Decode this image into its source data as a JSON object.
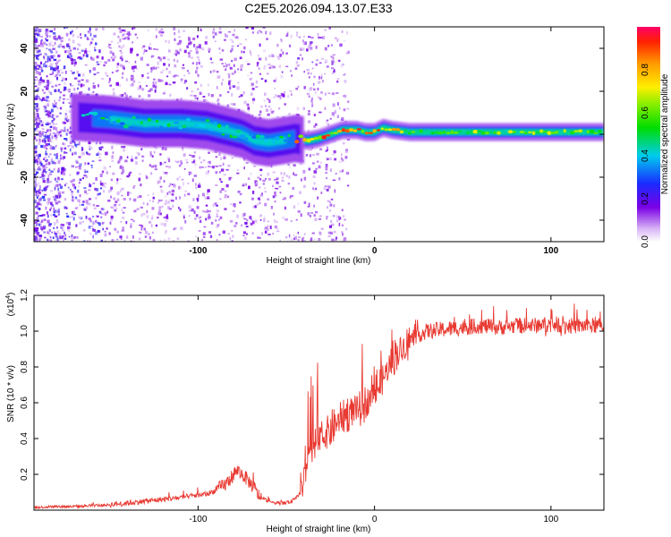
{
  "title": "C2E5.2026.094.13.07.E33",
  "chart_data": [
    {
      "type": "heatmap",
      "name": "spectrogram",
      "xlabel": "Height of straight line (km)",
      "ylabel": "Frequency (Hz)",
      "xlim": [
        -193,
        130
      ],
      "ylim": [
        -50,
        50
      ],
      "xticks": [
        -100,
        0,
        100
      ],
      "xtick_labels": [
        "-100",
        "0",
        "100"
      ],
      "yticks": [
        -40,
        -20,
        0,
        20,
        40
      ],
      "ytick_labels": [
        "-40",
        "-20",
        "0",
        "20",
        "40"
      ],
      "colorbar": {
        "label": "Normalized spectral amplitude",
        "range": [
          0,
          1
        ],
        "ticks": [
          0.0,
          0.2,
          0.4,
          0.6,
          0.8
        ],
        "tick_labels": [
          "0.0",
          "0.2",
          "0.4",
          "0.6",
          "0.8"
        ]
      },
      "centerline": {
        "x": [
          -170,
          -150,
          -130,
          -110,
          -95,
          -85,
          -75,
          -68,
          -60,
          -52,
          -45,
          -38,
          -32,
          -25,
          -18,
          -10,
          -5,
          0,
          5,
          10,
          20,
          40,
          60,
          80,
          100,
          130
        ],
        "y": [
          8,
          7,
          5,
          5,
          4,
          2,
          0,
          -3,
          -4,
          -3,
          -2,
          -3,
          -2,
          0,
          2,
          2,
          1,
          1,
          3,
          2,
          1,
          1,
          1,
          1,
          1,
          1
        ]
      }
    },
    {
      "type": "line",
      "name": "snr",
      "xlabel": "Height of straight line (km)",
      "ylabel": "SNR (10 * v/v)",
      "multiplier_label": "(x10",
      "multiplier_exponent": "4",
      "multiplier_suffix": ")",
      "xlim": [
        -193,
        130
      ],
      "ylim": [
        0,
        1.2
      ],
      "xticks": [
        -100,
        0,
        100
      ],
      "xtick_labels": [
        "-100",
        "0",
        "100"
      ],
      "yticks": [
        0.2,
        0.4,
        0.6,
        0.8,
        1.0,
        1.2
      ],
      "ytick_labels": [
        "0.2",
        "0.4",
        "0.6",
        "0.8",
        "1.0",
        "1.2"
      ],
      "series": [
        {
          "name": "SNR",
          "color": "#e83a32",
          "x": [
            -193,
            -180,
            -170,
            -160,
            -150,
            -140,
            -130,
            -120,
            -110,
            -100,
            -95,
            -90,
            -85,
            -82,
            -80,
            -78,
            -75,
            -72,
            -68,
            -65,
            -60,
            -55,
            -50,
            -47,
            -45,
            -42,
            -40,
            -38,
            -36,
            -34,
            -32,
            -30,
            -28,
            -25,
            -22,
            -20,
            -18,
            -15,
            -12,
            -10,
            -8,
            -5,
            -2,
            0,
            3,
            5,
            8,
            10,
            15,
            20,
            25,
            30,
            40,
            50,
            60,
            70,
            80,
            90,
            100,
            110,
            120,
            130
          ],
          "y": [
            0.015,
            0.02,
            0.02,
            0.025,
            0.03,
            0.04,
            0.05,
            0.06,
            0.07,
            0.085,
            0.09,
            0.11,
            0.14,
            0.17,
            0.2,
            0.22,
            0.2,
            0.17,
            0.12,
            0.07,
            0.05,
            0.04,
            0.04,
            0.05,
            0.06,
            0.1,
            0.18,
            0.26,
            0.33,
            0.36,
            0.38,
            0.4,
            0.42,
            0.45,
            0.48,
            0.5,
            0.52,
            0.54,
            0.55,
            0.56,
            0.57,
            0.6,
            0.63,
            0.66,
            0.7,
            0.74,
            0.8,
            0.85,
            0.9,
            0.95,
            0.98,
            1.0,
            1.01,
            1.02,
            1.03,
            1.02,
            1.03,
            1.03,
            1.04,
            1.03,
            1.03,
            1.03
          ]
        }
      ]
    }
  ]
}
